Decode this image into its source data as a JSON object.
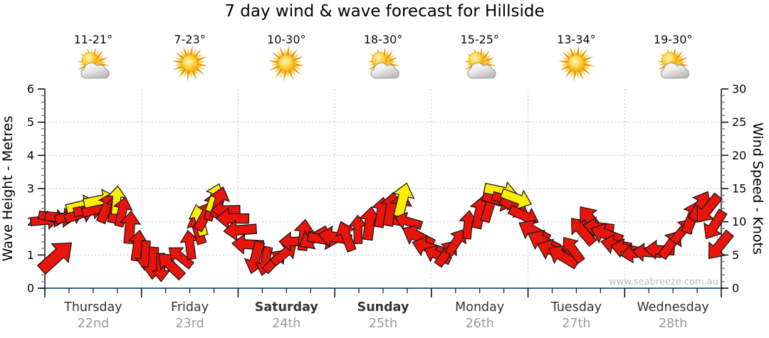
{
  "title": "7 day wind & wave forecast for Hillside",
  "watermark": "www.seabreeze.com.au",
  "days": [
    {
      "name": "Thursday",
      "date": "22nd",
      "temp_range": "11-21°",
      "icon": "sun-cloud",
      "weekend": false
    },
    {
      "name": "Friday",
      "date": "23rd",
      "temp_range": "7-23°",
      "icon": "sun",
      "weekend": false
    },
    {
      "name": "Saturday",
      "date": "24th",
      "temp_range": "10-30°",
      "icon": "sun",
      "weekend": true
    },
    {
      "name": "Sunday",
      "date": "25th",
      "temp_range": "18-30°",
      "icon": "sun-cloud",
      "weekend": true
    },
    {
      "name": "Monday",
      "date": "26th",
      "temp_range": "15-25°",
      "icon": "sun-cloud",
      "weekend": false
    },
    {
      "name": "Tuesday",
      "date": "27th",
      "temp_range": "13-34°",
      "icon": "sun",
      "weekend": false
    },
    {
      "name": "Wednesday",
      "date": "28th",
      "temp_range": "19-30°",
      "icon": "sun-cloud",
      "weekend": false
    }
  ],
  "chart_data": {
    "type": "wind-arrow-timeseries",
    "title": "7 day wind & wave forecast for Hillside",
    "y_left": {
      "label": "Wave Height - Metres",
      "min": 0,
      "max": 6,
      "major_step": 1,
      "minor_step": 0.2
    },
    "y_right": {
      "label": "Wind Speed - Knots",
      "min": 0,
      "max": 30,
      "major_step": 5,
      "minor_step": 1
    },
    "x_axis": {
      "days_count": 7,
      "minor_ticks_per_day": 4,
      "grid_day_boundaries": true
    },
    "colors": {
      "arrow_red": "#e8150d",
      "arrow_yellow": "#ffee00",
      "arrow_outline": "#181412",
      "x_axis_line": "#2d6a8f",
      "grid": "#c3c3c3",
      "tick_major": "#111111",
      "tick_minor": "#7a7a7a",
      "day_name": "#333333",
      "day_date": "#9a9a9a",
      "watermark": "#b8bdc2"
    },
    "wind_points_t_knots": [
      [
        0,
        10.3
      ],
      [
        0.08,
        10.5
      ],
      [
        0.16,
        10.6
      ],
      [
        0.26,
        10.9
      ],
      [
        0.36,
        11.3
      ],
      [
        0.46,
        11.7
      ],
      [
        0.55,
        12.0
      ],
      [
        0.64,
        12.2
      ],
      [
        0.72,
        12.1
      ],
      [
        0.8,
        11.2
      ],
      [
        0.88,
        9.2
      ],
      [
        0.96,
        6.6
      ],
      [
        1.04,
        4.6
      ],
      [
        1.12,
        3.5
      ],
      [
        1.2,
        3.2
      ],
      [
        1.3,
        3.8
      ],
      [
        1.4,
        4.8
      ],
      [
        1.5,
        6.5
      ],
      [
        1.58,
        8.6
      ],
      [
        1.66,
        10.8
      ],
      [
        1.73,
        12.4
      ],
      [
        1.8,
        12.6
      ],
      [
        1.87,
        11.5
      ],
      [
        1.94,
        10.3
      ],
      [
        2.02,
        8.8
      ],
      [
        2.1,
        6.7
      ],
      [
        2.18,
        4.7
      ],
      [
        2.28,
        3.8
      ],
      [
        2.38,
        4.1
      ],
      [
        2.48,
        5.2
      ],
      [
        2.58,
        6.8
      ],
      [
        2.68,
        7.8
      ],
      [
        2.78,
        7.3
      ],
      [
        2.88,
        7.4
      ],
      [
        3.0,
        7.7
      ],
      [
        3.12,
        8.2
      ],
      [
        3.24,
        9.0
      ],
      [
        3.36,
        10.0
      ],
      [
        3.48,
        11.2
      ],
      [
        3.58,
        12.2
      ],
      [
        3.68,
        11.9
      ],
      [
        3.76,
        10.3
      ],
      [
        3.86,
        8.0
      ],
      [
        3.96,
        6.0
      ],
      [
        4.06,
        4.8
      ],
      [
        4.16,
        5.2
      ],
      [
        4.26,
        7.0
      ],
      [
        4.38,
        9.4
      ],
      [
        4.5,
        11.4
      ],
      [
        4.6,
        12.5
      ],
      [
        4.7,
        13.4
      ],
      [
        4.78,
        13.1
      ],
      [
        4.86,
        12.4
      ],
      [
        4.96,
        10.8
      ],
      [
        5.06,
        8.8
      ],
      [
        5.16,
        6.9
      ],
      [
        5.26,
        5.4
      ],
      [
        5.36,
        4.8
      ],
      [
        5.46,
        6.1
      ],
      [
        5.56,
        8.4
      ],
      [
        5.65,
        10.1
      ],
      [
        5.73,
        9.5
      ],
      [
        5.81,
        8.0
      ],
      [
        5.91,
        6.7
      ],
      [
        6.01,
        5.9
      ],
      [
        6.11,
        5.4
      ],
      [
        6.23,
        5.1
      ],
      [
        6.36,
        5.4
      ],
      [
        6.48,
        6.4
      ],
      [
        6.6,
        8.3
      ],
      [
        6.7,
        10.8
      ],
      [
        6.78,
        12.2
      ],
      [
        6.86,
        11.6
      ],
      [
        6.93,
        9.6
      ],
      [
        6.98,
        6.2
      ]
    ],
    "direction_segments_tEnd_angle": [
      [
        0.24,
        2
      ],
      [
        0.62,
        -12
      ],
      [
        0.8,
        -70
      ],
      [
        1.02,
        -82
      ],
      [
        1.27,
        95
      ],
      [
        1.47,
        -140
      ],
      [
        1.62,
        -105
      ],
      [
        1.82,
        -65
      ],
      [
        2.14,
        182
      ],
      [
        2.34,
        108
      ],
      [
        2.54,
        -48
      ],
      [
        3.14,
        null
      ],
      [
        3.72,
        -84
      ],
      [
        4.08,
        206
      ],
      [
        4.32,
        -50
      ],
      [
        4.62,
        -75
      ],
      [
        5.0,
        20
      ],
      [
        5.46,
        205
      ],
      [
        5.72,
        -125
      ],
      [
        6.06,
        196
      ],
      [
        6.46,
        182
      ],
      [
        6.86,
        -58
      ],
      [
        7.1,
        130
      ]
    ],
    "mixed_angles": [
      182,
      -88,
      158,
      6,
      198,
      -115
    ],
    "yellow_ranges": [
      {
        "from": 0.24,
        "to": 0.78
      },
      {
        "from": 1.52,
        "to": 1.8
      },
      {
        "from": 3.56,
        "to": 3.72
      },
      {
        "from": 4.55,
        "to": 4.97
      }
    ],
    "big_arrows": [
      {
        "t": 0.12,
        "knots": 4.8,
        "angle": -42,
        "scale": 1.35
      }
    ]
  }
}
